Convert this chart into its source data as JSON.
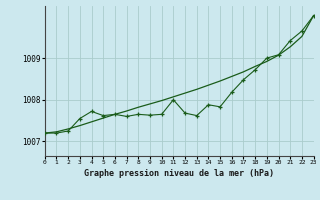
{
  "x": [
    0,
    1,
    2,
    3,
    4,
    5,
    6,
    7,
    8,
    9,
    10,
    11,
    12,
    13,
    14,
    15,
    16,
    17,
    18,
    19,
    20,
    21,
    22,
    23
  ],
  "y_jagged": [
    1007.2,
    1007.2,
    1007.25,
    1007.55,
    1007.72,
    1007.62,
    1007.65,
    1007.6,
    1007.65,
    1007.63,
    1007.65,
    1008.0,
    1007.68,
    1007.62,
    1007.88,
    1007.83,
    1008.18,
    1008.48,
    1008.72,
    1009.0,
    1009.08,
    1009.42,
    1009.65,
    1010.02
  ],
  "y_smooth": [
    1007.2,
    1007.23,
    1007.3,
    1007.38,
    1007.47,
    1007.56,
    1007.65,
    1007.73,
    1007.82,
    1007.9,
    1007.98,
    1008.07,
    1008.16,
    1008.25,
    1008.35,
    1008.45,
    1008.56,
    1008.67,
    1008.8,
    1008.92,
    1009.07,
    1009.27,
    1009.52,
    1010.02
  ],
  "background_color": "#cce8ee",
  "grid_color": "#aacccc",
  "line_color": "#1a5c1a",
  "xlabel": "Graphe pression niveau de la mer (hPa)",
  "ylim": [
    1006.65,
    1010.25
  ],
  "xlim": [
    0,
    23
  ],
  "yticks": [
    1007,
    1008,
    1009
  ],
  "xtick_labels": [
    "0",
    "1",
    "2",
    "3",
    "4",
    "5",
    "6",
    "7",
    "8",
    "9",
    "10",
    "11",
    "12",
    "13",
    "14",
    "15",
    "16",
    "17",
    "18",
    "19",
    "20",
    "21",
    "22",
    "23"
  ]
}
